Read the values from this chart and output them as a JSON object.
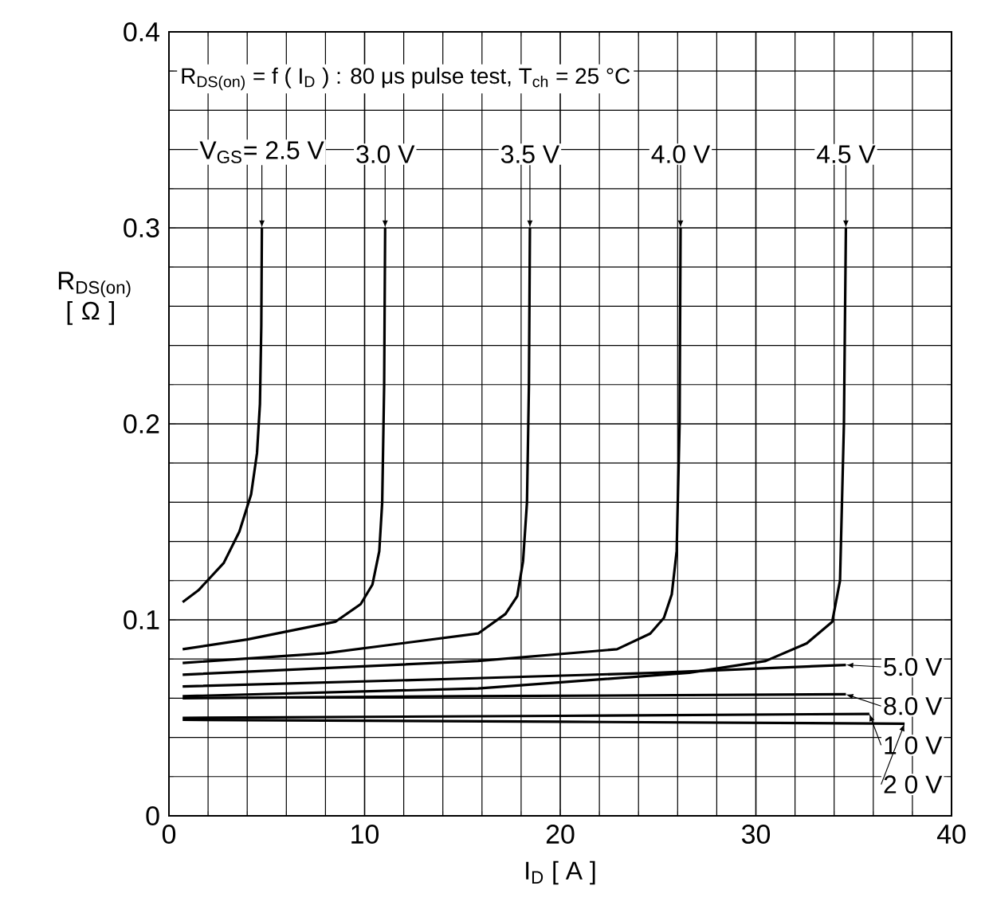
{
  "chart_data": {
    "type": "line",
    "xlabel": "I$_{D}$ [ A ]",
    "ylabel": "R$_{DS(on)}$ [ Ω ]",
    "annotations": [
      "R$_{DS(on)}$ = f ( I$_{D}$ ) : 80 μs pulse test,  T$_{ch}$ = 25 °C"
    ],
    "xlim": [
      0,
      40
    ],
    "ylim": [
      0,
      0.4
    ],
    "xticks": [
      0,
      10,
      20,
      30,
      40
    ],
    "yticks": [
      0,
      0.1,
      0.2,
      0.3,
      0.4
    ],
    "grid": true,
    "legend": "right",
    "series": [
      {
        "name": "V$_{GS}$= 2.5 V",
        "color": "#000000",
        "x": [
          0.7,
          1.5,
          2.8,
          3.6,
          4.2,
          4.5,
          4.65,
          4.72,
          4.75
        ],
        "values": [
          0.109,
          0.115,
          0.129,
          0.145,
          0.164,
          0.185,
          0.21,
          0.25,
          0.3
        ]
      },
      {
        "name": "3.0 V",
        "color": "#000000",
        "x": [
          0.7,
          4,
          8.5,
          9.8,
          10.4,
          10.75,
          10.9,
          11,
          11.05
        ],
        "values": [
          0.085,
          0.09,
          0.099,
          0.108,
          0.118,
          0.135,
          0.16,
          0.22,
          0.3
        ]
      },
      {
        "name": "3.5 V",
        "color": "#000000",
        "x": [
          0.7,
          8,
          15.8,
          17.2,
          17.8,
          18.1,
          18.3,
          18.4,
          18.45
        ],
        "values": [
          0.078,
          0.083,
          0.093,
          0.103,
          0.112,
          0.13,
          0.16,
          0.22,
          0.3
        ]
      },
      {
        "name": "4.0 V",
        "color": "#000000",
        "x": [
          0.7,
          15.8,
          22.9,
          24.6,
          25.3,
          25.7,
          25.95,
          26.1,
          26.15
        ],
        "values": [
          0.072,
          0.079,
          0.085,
          0.093,
          0.101,
          0.113,
          0.135,
          0.2,
          0.3
        ]
      },
      {
        "name": "4.5 V",
        "color": "#000000",
        "x": [
          0.7,
          15.8,
          26.6,
          30.5,
          32.6,
          33.9,
          34.3,
          34.5,
          34.6
        ],
        "values": [
          0.061,
          0.065,
          0.073,
          0.079,
          0.088,
          0.099,
          0.12,
          0.2,
          0.3
        ]
      },
      {
        "name": "5.0 V",
        "color": "#000000",
        "x": [
          0.7,
          15,
          25,
          34.6
        ],
        "values": [
          0.066,
          0.07,
          0.073,
          0.077
        ]
      },
      {
        "name": "8.0 V",
        "color": "#000000",
        "x": [
          0.7,
          15,
          34.6
        ],
        "values": [
          0.06,
          0.061,
          0.062
        ]
      },
      {
        "name": "1 0 V",
        "color": "#000000",
        "x": [
          0.7,
          20,
          35.8
        ],
        "values": [
          0.05,
          0.051,
          0.052
        ]
      },
      {
        "name": "2 0 V",
        "color": "#000000",
        "x": [
          0.7,
          20,
          37.6
        ],
        "values": [
          0.049,
          0.048,
          0.047
        ]
      }
    ]
  }
}
